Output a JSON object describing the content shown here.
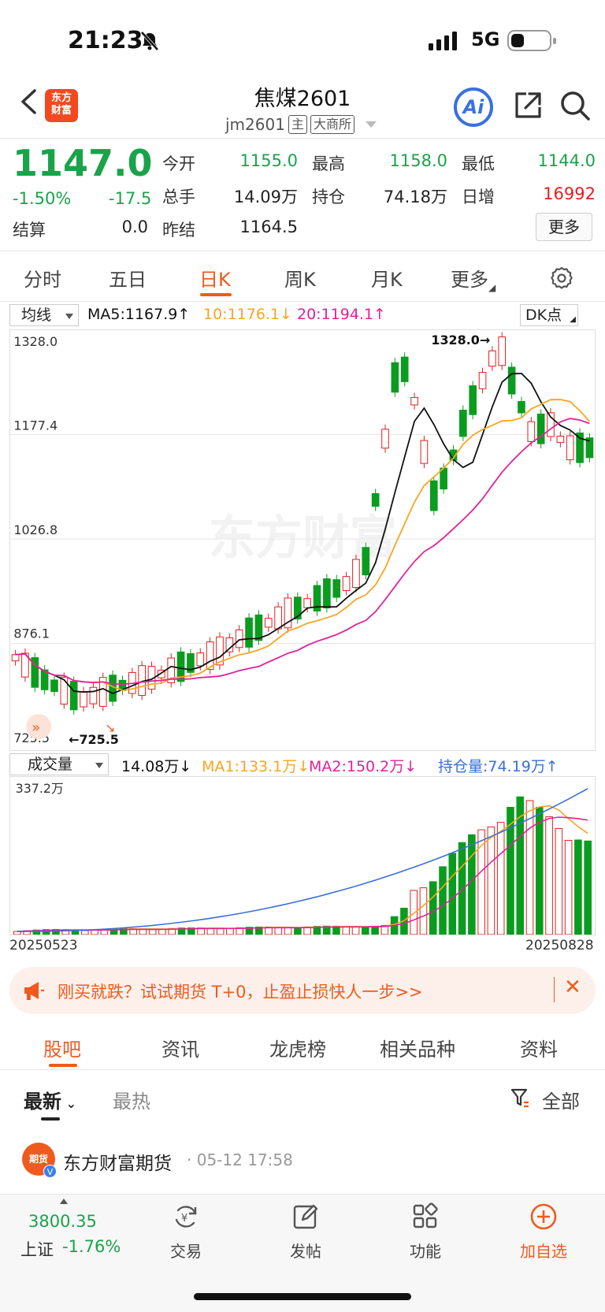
{
  "status": {
    "time": "21:23",
    "network": "5G"
  },
  "header": {
    "logo_line1": "东方",
    "logo_line2": "财富",
    "title": "焦煤2601",
    "code": "jm2601",
    "tag_main": "主",
    "exchange": "大商所",
    "ai_label": "Ai"
  },
  "quote": {
    "price": "1147.0",
    "change_pct": "-1.50%",
    "change": "-17.5",
    "fields": [
      {
        "label": "今开",
        "value": "1155.0"
      },
      {
        "label": "最高",
        "value": "1158.0"
      },
      {
        "label": "最低",
        "value": "1144.0"
      },
      {
        "label": "总手",
        "value": "14.09万"
      },
      {
        "label": "持仓",
        "value": "74.18万"
      },
      {
        "label": "日增",
        "value": "16992"
      },
      {
        "label": "结算",
        "value": "0.0"
      },
      {
        "label": "昨结",
        "value": "1164.5"
      }
    ],
    "more_button": "更多"
  },
  "period_tabs": [
    "分时",
    "五日",
    "日K",
    "周K",
    "月K",
    "更多"
  ],
  "period_active": 2,
  "kline": {
    "indicator_select": "均线",
    "ma5": "MA5:1167.9↑",
    "ma10": "10:1176.1↓",
    "ma20": "20:1194.1↑",
    "dk_select": "DK点",
    "y_labels": [
      "1328.0",
      "1177.4",
      "1026.8",
      "876.1",
      "725.5"
    ],
    "max_marker": "1328.0→",
    "min_marker": "←725.5",
    "watermark": "东方财富",
    "colors": {
      "up": "#e02020",
      "down": "#0a9c1e",
      "ma5": "#111111",
      "ma10": "#f5a623",
      "ma20": "#e0219b"
    }
  },
  "volume": {
    "indicator_select": "成交量",
    "vol": "14.08万↓",
    "ma1": "MA1:133.1万↓",
    "ma2": "MA2:150.2万↓",
    "oi": "持仓量:74.19万↑",
    "y_max": "337.2万",
    "date_start": "20250523",
    "date_end": "20250828",
    "colors": {
      "ma1": "#f5a623",
      "ma2": "#e0219b",
      "oi": "#3a6fd8"
    }
  },
  "banner": {
    "text": "刚买就跌？试试期货 T+0，止盈止损快人一步>>",
    "close": "✕"
  },
  "bottom_tabs": [
    "股吧",
    "资讯",
    "龙虎榜",
    "相关品种",
    "资料"
  ],
  "sort": {
    "latest": "最新",
    "hot": "最热",
    "filter": "全部"
  },
  "post": {
    "avatar": "期货",
    "author": "东方财富期货",
    "time": "· 05-12 17:58"
  },
  "bottom_bar": {
    "index_value": "3800.35",
    "index_name": "上证",
    "index_pct": "-1.76%",
    "items": [
      "交易",
      "发帖",
      "功能",
      "加自选"
    ]
  }
}
